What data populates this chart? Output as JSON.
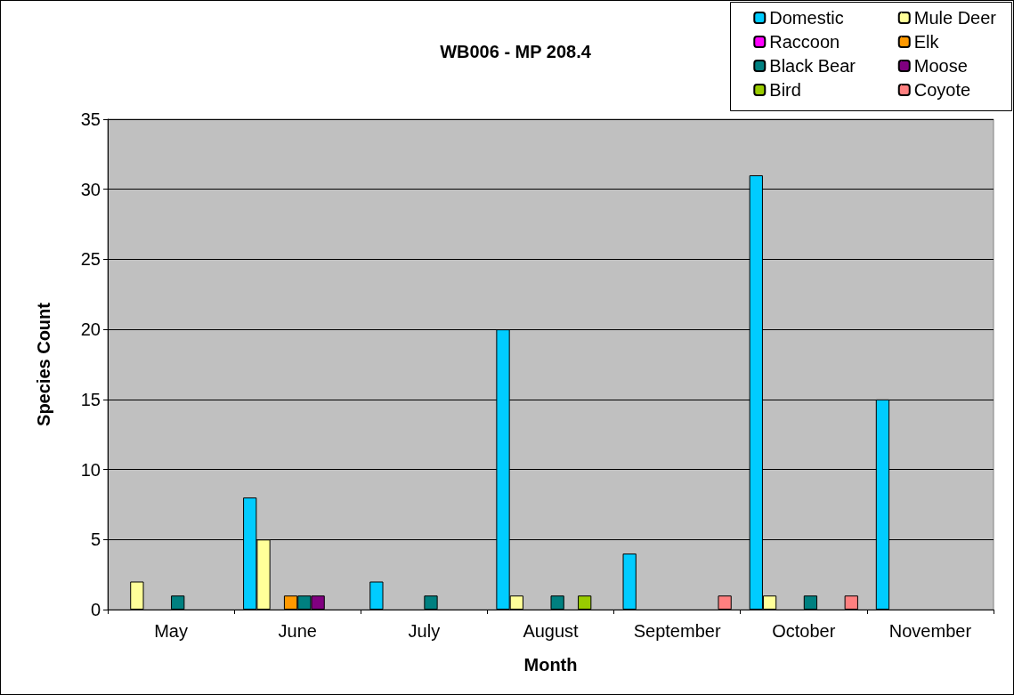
{
  "chart_data": {
    "type": "bar",
    "title": "WB006 - MP 208.4",
    "xlabel": "Month",
    "ylabel": "Species Count",
    "categories": [
      "May",
      "June",
      "July",
      "August",
      "September",
      "October",
      "November"
    ],
    "series": [
      {
        "name": "Domestic",
        "color": "#00ccff",
        "values": [
          0,
          8,
          2,
          20,
          4,
          31,
          15
        ]
      },
      {
        "name": "Mule Deer",
        "color": "#ffff99",
        "values": [
          2,
          5,
          0,
          1,
          0,
          1,
          0
        ]
      },
      {
        "name": "Raccoon",
        "color": "#ff00ff",
        "values": [
          0,
          0,
          0,
          0,
          0,
          0,
          0
        ]
      },
      {
        "name": "Elk",
        "color": "#ff9900",
        "values": [
          0,
          1,
          0,
          0,
          0,
          0,
          0
        ]
      },
      {
        "name": "Black Bear",
        "color": "#008080",
        "values": [
          1,
          1,
          1,
          1,
          0,
          1,
          0
        ]
      },
      {
        "name": "Moose",
        "color": "#800080",
        "values": [
          0,
          1,
          0,
          0,
          0,
          0,
          0
        ]
      },
      {
        "name": "Bird",
        "color": "#99cc00",
        "values": [
          0,
          0,
          0,
          1,
          0,
          0,
          0
        ]
      },
      {
        "name": "Coyote",
        "color": "#ff8080",
        "values": [
          0,
          0,
          0,
          0,
          1,
          1,
          0
        ]
      }
    ],
    "ylim": [
      0,
      35
    ],
    "yticks": [
      0,
      5,
      10,
      15,
      20,
      25,
      30,
      35
    ],
    "grid": "y",
    "legend": "top right"
  }
}
